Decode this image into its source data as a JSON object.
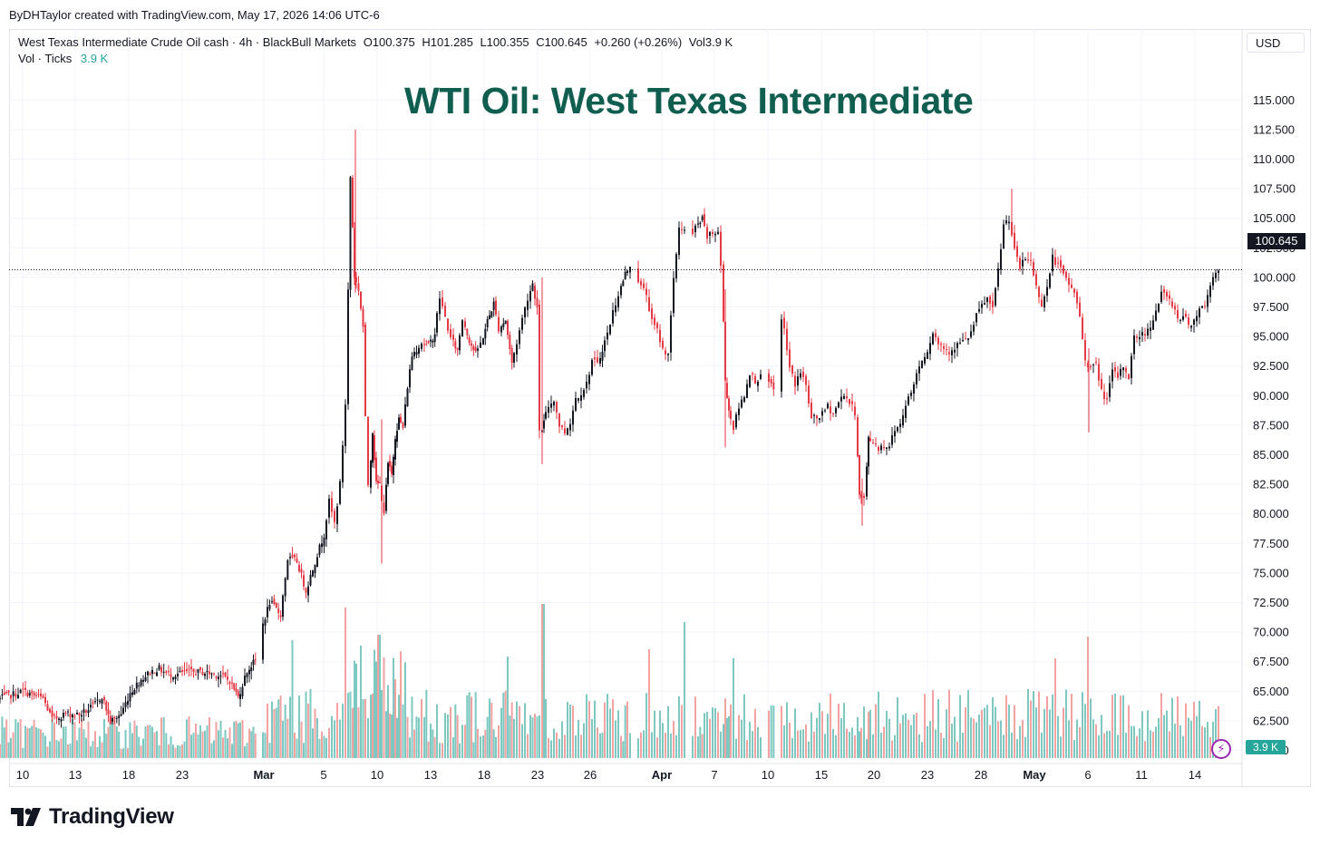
{
  "header": {
    "author_line": "ByDHTaylor created with TradingView.com, May 17, 2026 14:06 UTC-6"
  },
  "legend": {
    "symbol": "West Texas Intermediate Crude Oil cash · 4h · BlackBull Markets",
    "open": "O100.375",
    "high": "H101.285",
    "low": "L100.355",
    "close": "C100.645",
    "change": "+0.260 (+0.26%)",
    "volume": "Vol3.9 K",
    "vol_label": "Vol · Ticks",
    "vol_value": "3.9 K"
  },
  "title": "WTI Oil: West Texas Intermediate",
  "currency_button": "USD",
  "last_price_label": "100.645",
  "volume_label": "3.9 K",
  "branding": "TradingView",
  "colors": {
    "up": "#131722",
    "down": "#e53945",
    "volume_up": "#7dc8c0",
    "volume_down": "#f3a2a2",
    "title": "#0f5e4f",
    "accent_volume": "#26a69a"
  },
  "icons": [
    "tradingview-logo-icon",
    "bolt-icon"
  ],
  "chart_data": {
    "type": "candlestick",
    "timeframe": "4h",
    "y_axis": {
      "ticks": [
        "115.000",
        "112.500",
        "110.000",
        "107.500",
        "105.000",
        "102.500",
        "100.000",
        "97.500",
        "95.000",
        "92.500",
        "90.000",
        "87.500",
        "85.000",
        "82.500",
        "80.000",
        "77.500",
        "75.000",
        "72.500",
        "70.000",
        "67.500",
        "65.000",
        "62.500",
        "60.000"
      ],
      "range": [
        59.5,
        116.5
      ]
    },
    "x_axis": {
      "ticks": [
        "10",
        "13",
        "18",
        "23",
        "Mar",
        "5",
        "10",
        "13",
        "18",
        "23",
        "26",
        "Apr",
        "7",
        "10",
        "15",
        "20",
        "23",
        "28",
        "May",
        "6",
        "11",
        "14"
      ],
      "bold_ticks": [
        "Mar",
        "Apr",
        "May"
      ]
    },
    "close_path": [
      [
        0,
        64.3
      ],
      [
        12,
        64.6
      ],
      [
        28,
        65.0
      ],
      [
        40,
        64.6
      ],
      [
        50,
        64.4
      ],
      [
        60,
        62.6
      ],
      [
        75,
        63.1
      ],
      [
        90,
        63.0
      ],
      [
        105,
        63.7
      ],
      [
        115,
        64.6
      ],
      [
        124,
        62.4
      ],
      [
        136,
        63.1
      ],
      [
        146,
        64.9
      ],
      [
        158,
        66.0
      ],
      [
        168,
        66.6
      ],
      [
        178,
        66.9
      ],
      [
        186,
        66.5
      ],
      [
        196,
        66.4
      ],
      [
        206,
        66.6
      ],
      [
        216,
        66.6
      ],
      [
        226,
        66.6
      ],
      [
        236,
        66.5
      ],
      [
        246,
        66.3
      ],
      [
        256,
        65.9
      ],
      [
        265,
        64.5
      ],
      [
        275,
        66.7
      ],
      [
        284,
        67.6
      ],
      [
        290,
        70.1
      ],
      [
        300,
        72.5
      ],
      [
        312,
        71.5
      ],
      [
        320,
        76.2
      ],
      [
        330,
        76.0
      ],
      [
        340,
        73.5
      ],
      [
        350,
        76.0
      ],
      [
        360,
        78.3
      ],
      [
        366,
        81.0
      ],
      [
        372,
        79.2
      ],
      [
        378,
        82.5
      ],
      [
        384,
        89.3
      ],
      [
        389,
        108.5
      ],
      [
        393,
        100.1
      ],
      [
        398,
        99.0
      ],
      [
        403,
        95.8
      ],
      [
        406,
        88.0
      ],
      [
        409,
        82.5
      ],
      [
        413,
        87.0
      ],
      [
        417,
        82.5
      ],
      [
        421,
        82.5
      ],
      [
        426,
        80.2
      ],
      [
        430,
        84.2
      ],
      [
        434,
        83.3
      ],
      [
        438,
        86.6
      ],
      [
        442,
        88.0
      ],
      [
        447,
        87.3
      ],
      [
        452,
        90.8
      ],
      [
        457,
        93.4
      ],
      [
        462,
        94.0
      ],
      [
        468,
        94.5
      ],
      [
        475,
        94.2
      ],
      [
        482,
        95.3
      ],
      [
        488,
        98.3
      ],
      [
        494,
        96.6
      ],
      [
        500,
        94.8
      ],
      [
        507,
        93.8
      ],
      [
        513,
        96.5
      ],
      [
        520,
        94.7
      ],
      [
        527,
        93.5
      ],
      [
        533,
        94.4
      ],
      [
        540,
        96.3
      ],
      [
        547,
        97.8
      ],
      [
        553,
        95.7
      ],
      [
        560,
        96.4
      ],
      [
        567,
        92.7
      ],
      [
        573,
        94.5
      ],
      [
        579,
        96.5
      ],
      [
        585,
        98.3
      ],
      [
        590,
        99.5
      ],
      [
        595,
        97.4
      ],
      [
        598,
        86.8
      ],
      [
        602,
        87.7
      ],
      [
        608,
        89.1
      ],
      [
        614,
        89.7
      ],
      [
        620,
        87.5
      ],
      [
        626,
        86.9
      ],
      [
        632,
        87.8
      ],
      [
        638,
        89.8
      ],
      [
        644,
        90.3
      ],
      [
        650,
        91.0
      ],
      [
        656,
        93.0
      ],
      [
        662,
        92.6
      ],
      [
        667,
        94.0
      ],
      [
        673,
        95.2
      ],
      [
        679,
        97.1
      ],
      [
        685,
        98.6
      ],
      [
        692,
        100.3
      ],
      [
        698,
        101.1
      ],
      [
        704,
        100.3
      ],
      [
        710,
        99.2
      ],
      [
        716,
        98.6
      ],
      [
        722,
        96.2
      ],
      [
        728,
        95.5
      ],
      [
        734,
        93.9
      ],
      [
        740,
        93.6
      ],
      [
        746,
        99.7
      ],
      [
        752,
        104.3
      ],
      [
        758,
        104.0
      ],
      [
        764,
        102.9
      ],
      [
        770,
        104.2
      ],
      [
        777,
        104.9
      ],
      [
        783,
        103.4
      ],
      [
        789,
        103.7
      ],
      [
        795,
        103.9
      ],
      [
        798,
        101.0
      ],
      [
        802,
        91.3
      ],
      [
        806,
        88.8
      ],
      [
        812,
        87.3
      ],
      [
        818,
        89.0
      ],
      [
        824,
        90.1
      ],
      [
        830,
        92.0
      ],
      [
        836,
        91.3
      ],
      [
        842,
        91.5
      ],
      [
        848,
        91.4
      ],
      [
        856,
        90.4
      ],
      [
        862,
        97.8
      ],
      [
        868,
        95.5
      ],
      [
        874,
        92.3
      ],
      [
        880,
        91.0
      ],
      [
        886,
        92.0
      ],
      [
        892,
        90.8
      ],
      [
        898,
        88.0
      ],
      [
        904,
        88.1
      ],
      [
        910,
        88.4
      ],
      [
        916,
        89.1
      ],
      [
        922,
        88.5
      ],
      [
        928,
        89.4
      ],
      [
        934,
        90.2
      ],
      [
        940,
        89.4
      ],
      [
        946,
        88.6
      ],
      [
        950,
        81.5
      ],
      [
        956,
        81.2
      ],
      [
        960,
        86.5
      ],
      [
        966,
        86.1
      ],
      [
        972,
        85.6
      ],
      [
        978,
        85.8
      ],
      [
        984,
        85.8
      ],
      [
        990,
        87.1
      ],
      [
        996,
        87.6
      ],
      [
        1002,
        89.4
      ],
      [
        1008,
        90.2
      ],
      [
        1014,
        91.9
      ],
      [
        1020,
        93.1
      ],
      [
        1026,
        93.9
      ],
      [
        1032,
        95.4
      ],
      [
        1038,
        94.4
      ],
      [
        1044,
        94.1
      ],
      [
        1050,
        93.8
      ],
      [
        1056,
        94.1
      ],
      [
        1062,
        94.5
      ],
      [
        1068,
        94.6
      ],
      [
        1074,
        95.3
      ],
      [
        1080,
        96.7
      ],
      [
        1086,
        97.6
      ],
      [
        1092,
        98.2
      ],
      [
        1098,
        97.2
      ],
      [
        1104,
        100.6
      ],
      [
        1110,
        104.4
      ],
      [
        1116,
        105.0
      ],
      [
        1122,
        102.2
      ],
      [
        1128,
        100.8
      ],
      [
        1134,
        101.6
      ],
      [
        1140,
        101.4
      ],
      [
        1146,
        99.2
      ],
      [
        1152,
        97.8
      ],
      [
        1158,
        99.1
      ],
      [
        1164,
        101.7
      ],
      [
        1170,
        101.0
      ],
      [
        1176,
        100.2
      ],
      [
        1182,
        99.4
      ],
      [
        1188,
        98.8
      ],
      [
        1194,
        96.6
      ],
      [
        1200,
        93.1
      ],
      [
        1206,
        92.3
      ],
      [
        1212,
        92.6
      ],
      [
        1218,
        90.4
      ],
      [
        1224,
        89.6
      ],
      [
        1230,
        92.0
      ],
      [
        1236,
        91.6
      ],
      [
        1242,
        92.5
      ],
      [
        1248,
        91.6
      ],
      [
        1254,
        94.9
      ],
      [
        1260,
        95.1
      ],
      [
        1266,
        95.3
      ],
      [
        1272,
        96.0
      ],
      [
        1278,
        97.2
      ],
      [
        1284,
        98.6
      ],
      [
        1290,
        98.3
      ],
      [
        1296,
        97.8
      ],
      [
        1302,
        96.6
      ],
      [
        1308,
        96.7
      ],
      [
        1314,
        96.1
      ],
      [
        1320,
        96.3
      ],
      [
        1326,
        97.5
      ],
      [
        1332,
        97.5
      ],
      [
        1338,
        99.5
      ],
      [
        1344,
        100.5
      ],
      [
        1347,
        100.6
      ]
    ],
    "gaps_after_index": [
      26,
      95,
      105,
      120,
      122
    ],
    "shocks": [
      {
        "x": 392,
        "high": 112.5,
        "low": 98.7
      },
      {
        "x": 421,
        "high": 88.0,
        "low": 75.8
      },
      {
        "x": 598,
        "high": 100.0,
        "low": 84.2
      },
      {
        "x": 800,
        "high": 99.0,
        "low": 85.6
      },
      {
        "x": 951,
        "high": 83.0,
        "low": 79.0
      },
      {
        "x": 1201,
        "high": 94.0,
        "low": 86.9
      },
      {
        "x": 1116,
        "high": 107.5,
        "low": 104.0
      }
    ],
    "volume_max_label": "3.9 K",
    "volume_spikes": [
      {
        "x": 381,
        "h": 0.83
      },
      {
        "x": 598,
        "h": 0.85
      },
      {
        "x": 755,
        "h": 0.75
      },
      {
        "x": 1202,
        "h": 0.67
      },
      {
        "x": 1164,
        "h": 0.55
      },
      {
        "x": 716,
        "h": 0.6
      },
      {
        "x": 418,
        "h": 0.68
      },
      {
        "x": 399,
        "h": 0.62
      },
      {
        "x": 321,
        "h": 0.65
      },
      {
        "x": 560,
        "h": 0.56
      },
      {
        "x": 808,
        "h": 0.55
      }
    ]
  }
}
